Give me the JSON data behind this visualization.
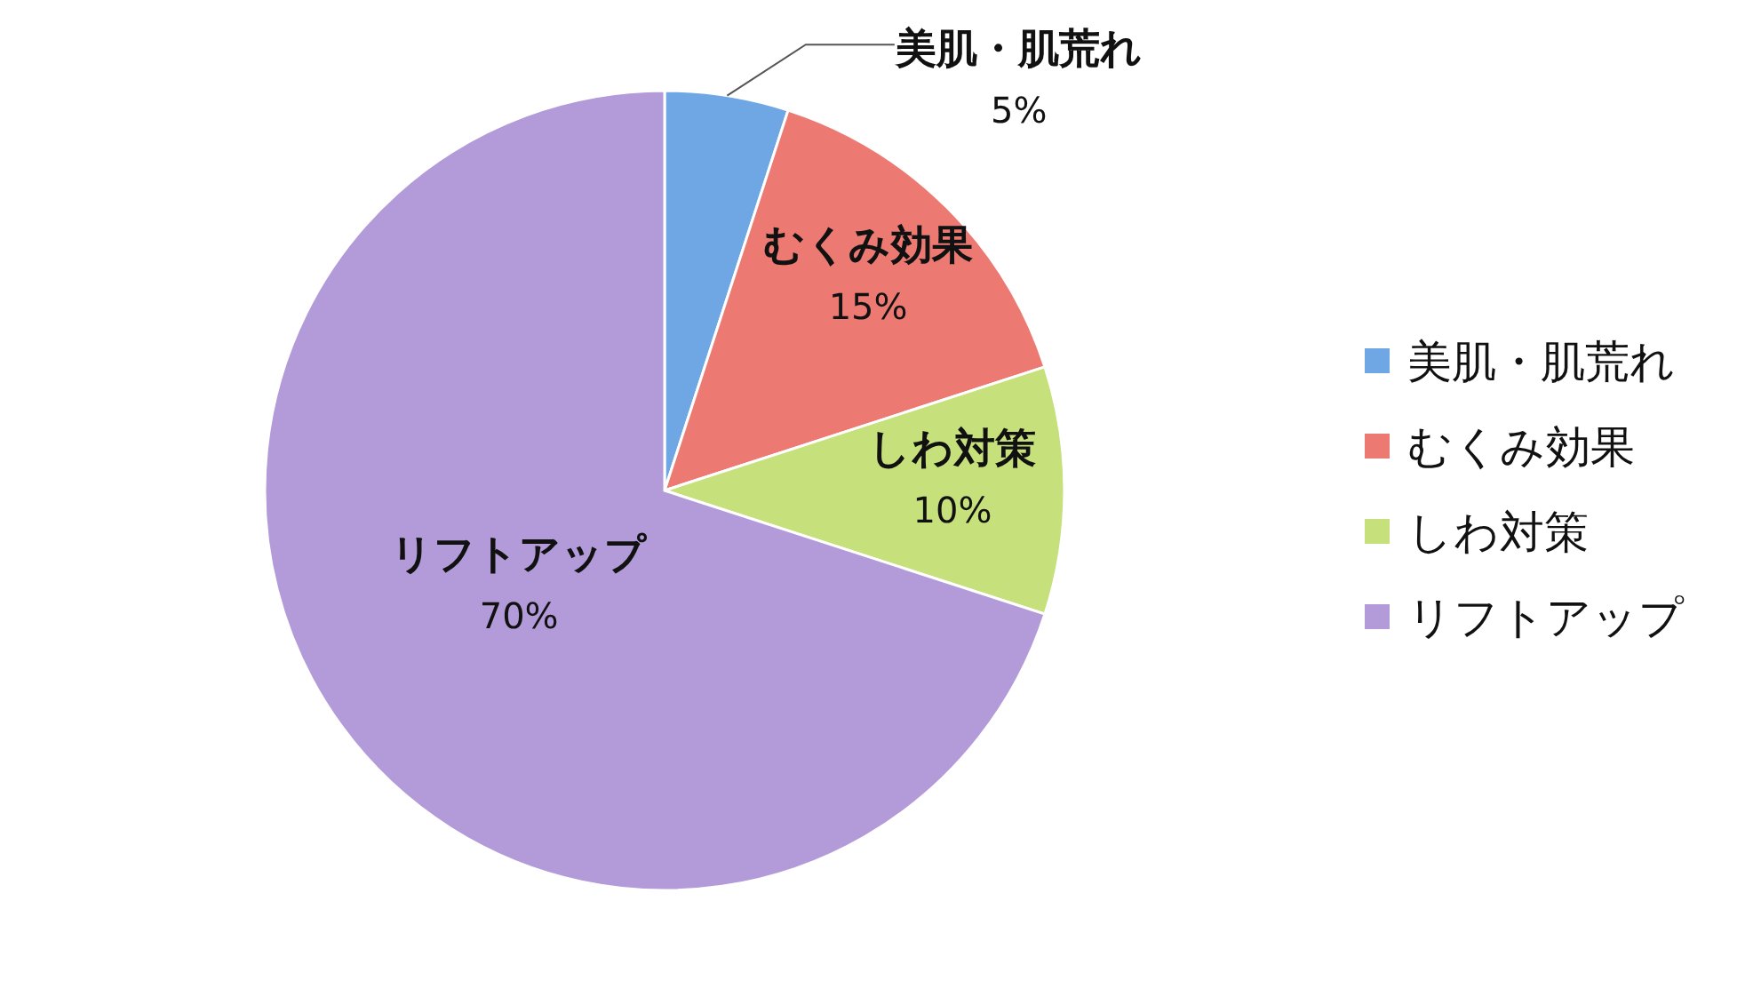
{
  "chart_data": {
    "type": "pie",
    "categories": [
      "美肌・肌荒れ",
      "むくみ効果",
      "しわ対策",
      "リフトアップ"
    ],
    "values": [
      5,
      15,
      10,
      70
    ],
    "colors": [
      "#6fa6e4",
      "#ec7a72",
      "#c6e07c",
      "#b29bd8"
    ],
    "value_labels": [
      "5%",
      "15%",
      "10%",
      "70%"
    ],
    "legend": "right"
  }
}
